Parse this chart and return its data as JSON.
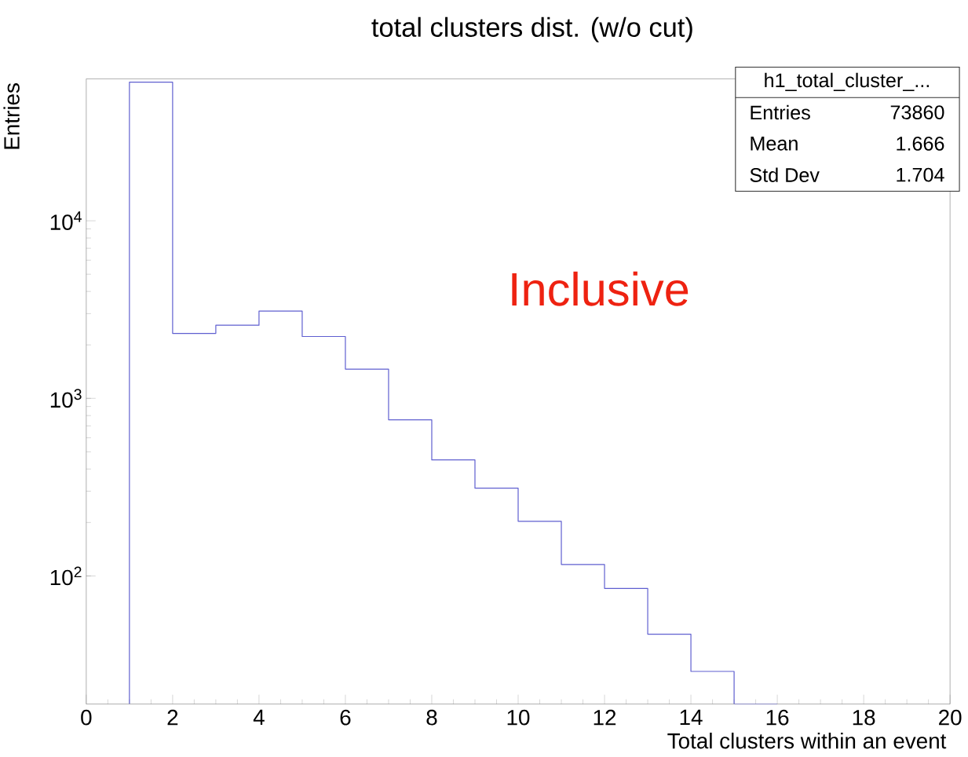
{
  "chart_data": {
    "type": "histogram",
    "title": "total clusters dist. (w/o cut)",
    "xlabel": "Total clusters within an event",
    "ylabel": "Entries",
    "bins": [
      1,
      2,
      3,
      4,
      5,
      6,
      7,
      8,
      9,
      10,
      11,
      12,
      13,
      14,
      15,
      16
    ],
    "values": [
      60300,
      2320,
      2580,
      3100,
      2230,
      1460,
      757,
      450,
      312,
      203,
      116,
      85,
      47,
      29,
      19
    ],
    "color": "#5f5fd0",
    "log": "y",
    "xlim": [
      0,
      20
    ],
    "xticks": [
      0,
      2,
      4,
      6,
      8,
      10,
      12,
      14,
      16,
      18,
      20
    ],
    "ylim": [
      19,
      63000
    ],
    "yticks": [
      {
        "value": 100,
        "label": "10$^{2}$"
      },
      {
        "value": 1000,
        "label": "10$^{3}$"
      },
      {
        "value": 10000,
        "label": "10$^{4}$"
      }
    ],
    "annotations": [
      "h1_total_cluster_...",
      "Entries",
      "73860",
      "Mean",
      "1.666",
      "Std Dev",
      "1.704",
      "Inclusive"
    ]
  }
}
